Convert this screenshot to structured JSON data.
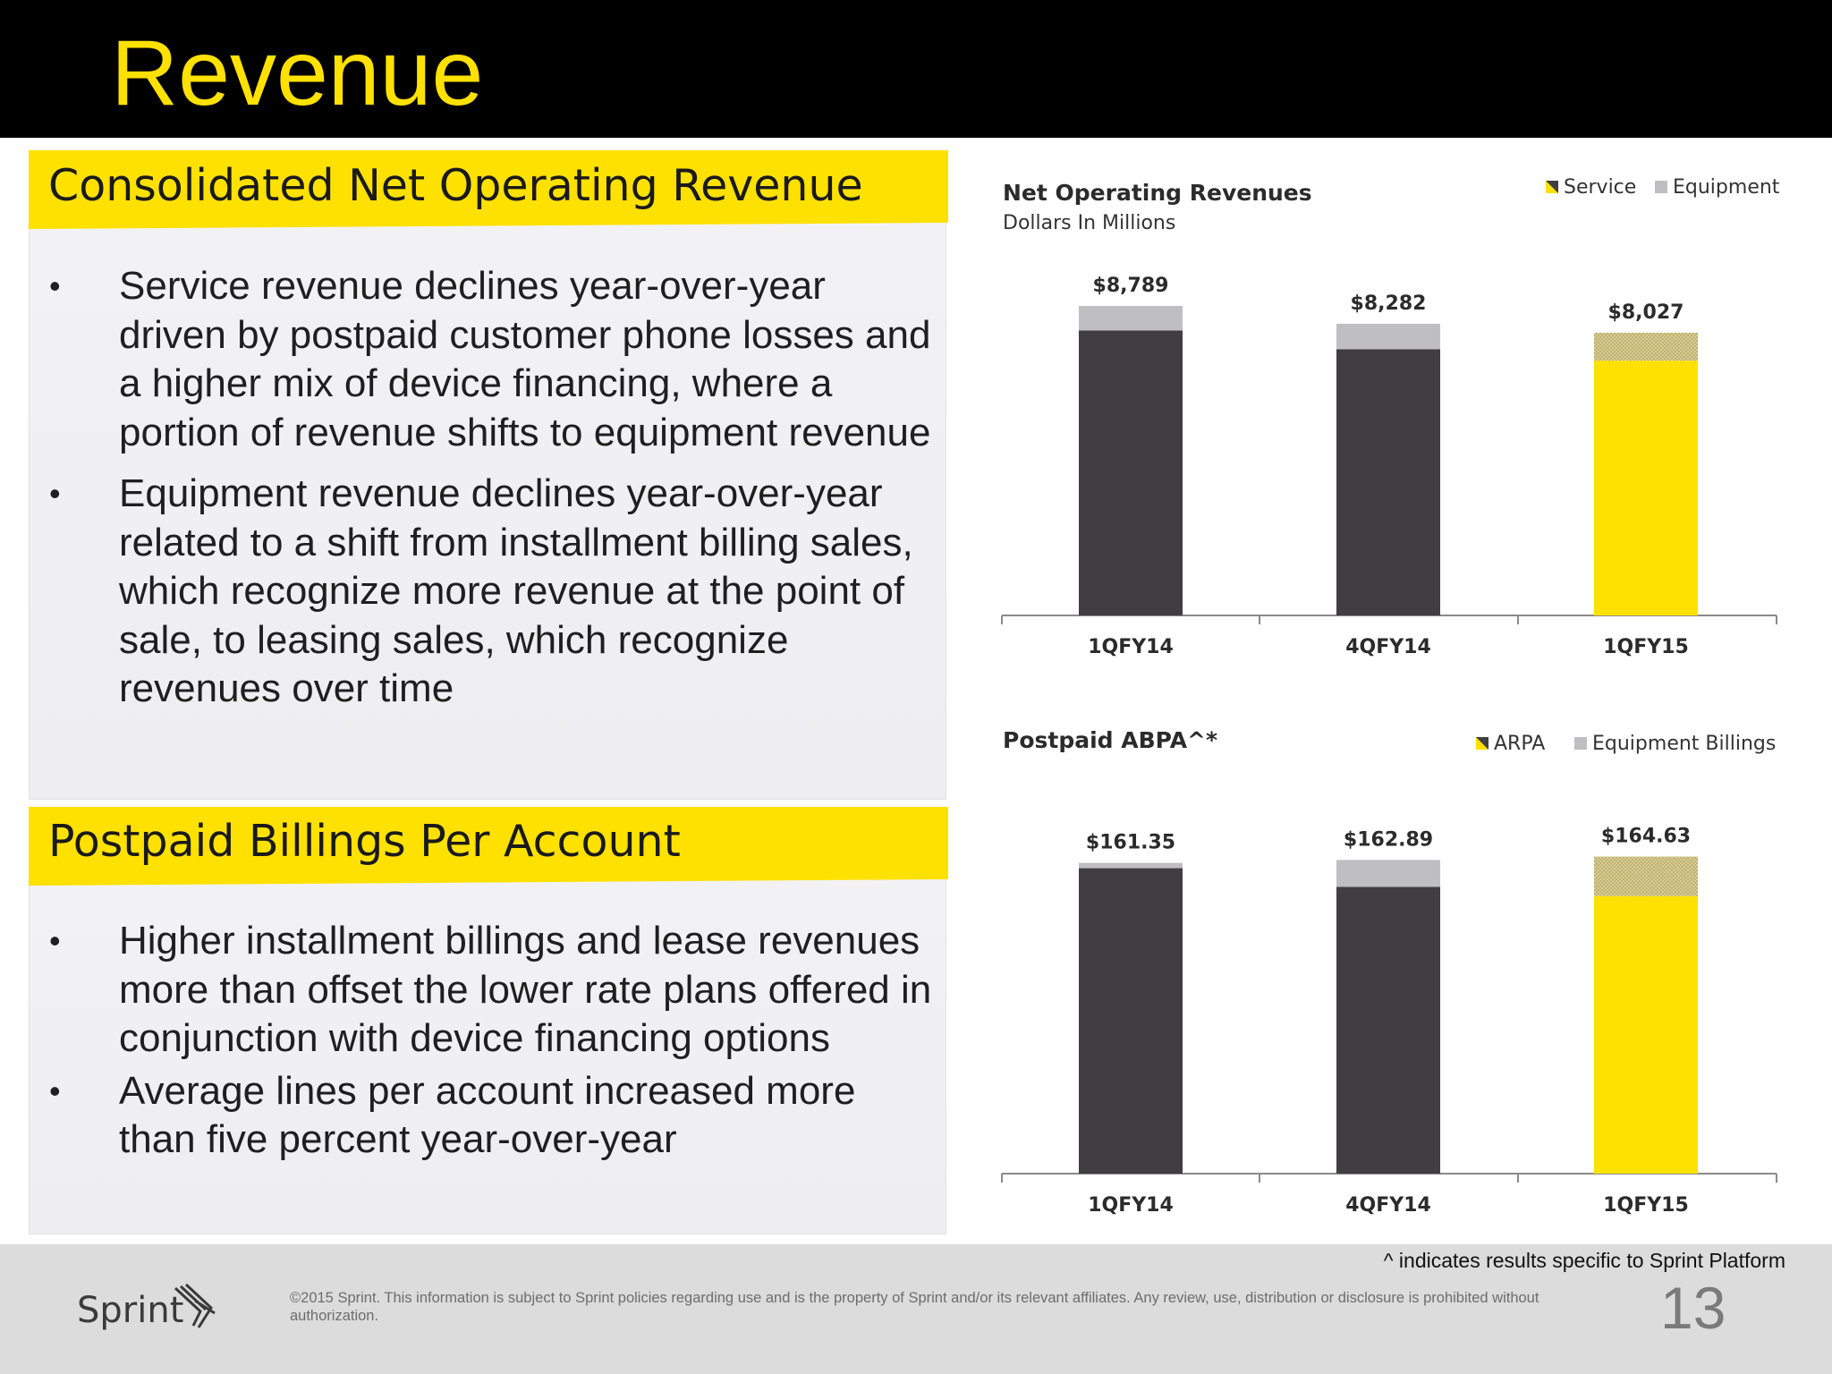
{
  "page": {
    "title": "Revenue",
    "footnote": "^ indicates results specific to Sprint Platform",
    "copyright": "©2015 Sprint. This information is subject to Sprint policies regarding use and is the property of Sprint and/or its relevant affiliates. Any review, use, distribution or disclosure is prohibited without authorization.",
    "page_number": "13",
    "logo_text": "Sprint"
  },
  "panel1": {
    "heading": "Consolidated Net Operating Revenue",
    "bullets": [
      "Service revenue declines year-over-year driven by postpaid customer phone losses and a higher mix of device financing, where a portion of revenue shifts to equipment revenue",
      "Equipment revenue declines year-over-year related to a shift from installment billing sales, which recognize more revenue at the point of sale, to leasing sales, which recognize revenues over time"
    ]
  },
  "panel2": {
    "heading": "Postpaid Billings Per Account",
    "bullets": [
      "Higher installment billings and lease revenues more than offset the lower rate plans offered in conjunction with device financing options",
      "Average lines per account increased more than five percent year-over-year"
    ]
  },
  "colors": {
    "title_yellow": "#FFE100",
    "bar_dark": "#403E41",
    "bar_gray": "#BFBFC1",
    "bar_yellow": "#FFE100",
    "hatch_yellow": "#D9CE8A"
  },
  "chart_data": [
    {
      "type": "bar",
      "stacked": true,
      "title": "Net Operating Revenues",
      "subtitle": "Dollars In Millions",
      "categories": [
        "1QFY14",
        "4QFY14",
        "1QFY15"
      ],
      "series": [
        {
          "name": "Service",
          "values": [
            8092,
            7560,
            7233
          ]
        },
        {
          "name": "Equipment",
          "values": [
            697,
            722,
            794
          ]
        }
      ],
      "total_labels": [
        "$8,789",
        "$8,282",
        "$8,027"
      ],
      "ylim": [
        0,
        9500
      ],
      "legend": "top-right",
      "grid": false
    },
    {
      "type": "bar",
      "stacked": true,
      "title": "Postpaid ABPA^*",
      "categories": [
        "1QFY14",
        "4QFY14",
        "1QFY15"
      ],
      "series": [
        {
          "name": "ARPA",
          "values": [
            158.6,
            148.9,
            144.1
          ]
        },
        {
          "name": "Equipment Billings",
          "values": [
            2.75,
            13.99,
            20.53
          ]
        }
      ],
      "total_labels": [
        "$161.35",
        "$162.89",
        "$164.63"
      ],
      "ylim": [
        0,
        170
      ],
      "legend": "top-right",
      "grid": false
    }
  ]
}
